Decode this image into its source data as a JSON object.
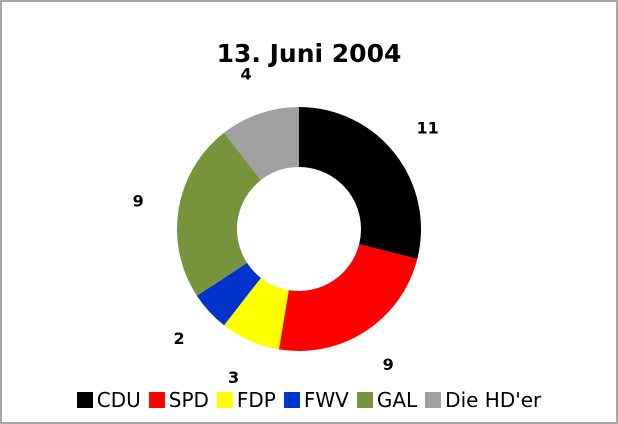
{
  "chart_data": {
    "type": "donut",
    "title": "13. Juni 2004",
    "categories": [
      "CDU",
      "SPD",
      "FDP",
      "FWV",
      "GAL",
      "Die HD'er"
    ],
    "values": [
      11,
      9,
      3,
      2,
      9,
      4
    ],
    "colors": [
      "#000000",
      "#ff0000",
      "#ffff00",
      "#0033cc",
      "#77933c",
      "#a0a0a0"
    ],
    "legend": "bottom"
  }
}
